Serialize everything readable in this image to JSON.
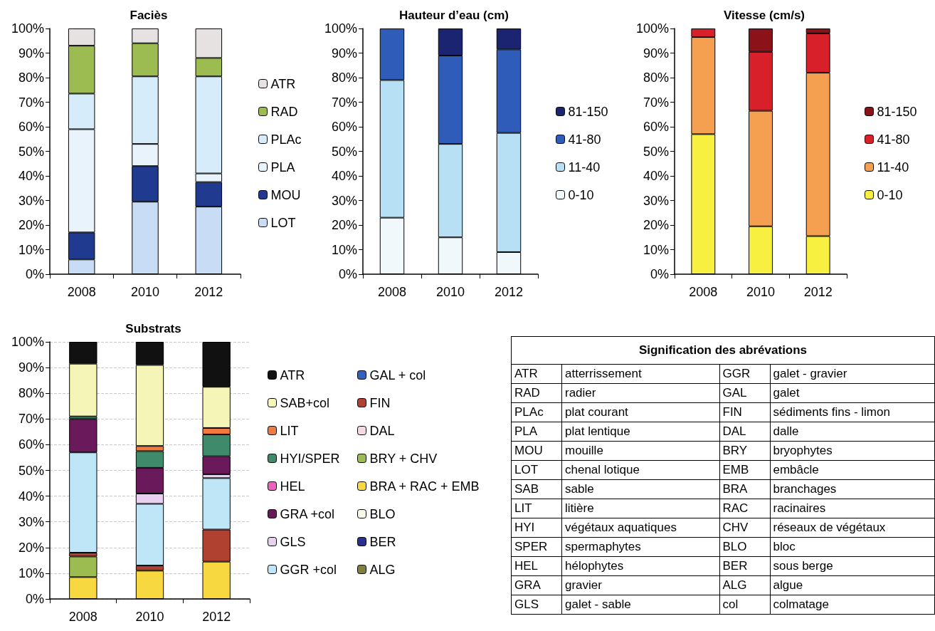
{
  "chart_data": [
    {
      "type": "bar",
      "stacked": true,
      "title": "Faciès",
      "categories": [
        "2008",
        "2010",
        "2012"
      ],
      "legend": "right",
      "ylim": [
        0,
        100
      ],
      "yticks": [
        {
          "value": 0,
          "label": "0%"
        },
        {
          "value": 10,
          "label": "10%"
        },
        {
          "value": 20,
          "label": "20%"
        },
        {
          "value": 30,
          "label": "30%"
        },
        {
          "value": 40,
          "label": "40%"
        },
        {
          "value": 50,
          "label": "50%"
        },
        {
          "value": 60,
          "label": "60%"
        },
        {
          "value": 70,
          "label": "70%"
        },
        {
          "value": 80,
          "label": "80%"
        },
        {
          "value": 90,
          "label": "90%"
        },
        {
          "value": 100,
          "label": "100%"
        }
      ],
      "series": [
        {
          "name": "LOT",
          "color": "#c9dcf5",
          "values": [
            6,
            29.5,
            27.5
          ]
        },
        {
          "name": "MOU",
          "color": "#1f3a8f",
          "values": [
            11,
            14.5,
            10
          ]
        },
        {
          "name": "PLA",
          "color": "#e8f3fb",
          "values": [
            42,
            9,
            3.5
          ]
        },
        {
          "name": "PLAc",
          "color": "#d7ecfa",
          "values": [
            14.5,
            27.5,
            39.5
          ]
        },
        {
          "name": "RAD",
          "color": "#9cbb50",
          "values": [
            19.5,
            13.5,
            7.5
          ]
        },
        {
          "name": "ATR",
          "color": "#e6e2e2",
          "values": [
            7,
            6,
            12
          ]
        }
      ]
    },
    {
      "type": "bar",
      "stacked": true,
      "title": "Hauteur d’eau (cm)",
      "categories": [
        "2008",
        "2010",
        "2012"
      ],
      "legend": "right",
      "ylim": [
        0,
        100
      ],
      "yticks": [
        {
          "value": 0,
          "label": "0%"
        },
        {
          "value": 10,
          "label": "10%"
        },
        {
          "value": 20,
          "label": "20%"
        },
        {
          "value": 30,
          "label": "30%"
        },
        {
          "value": 40,
          "label": "40%"
        },
        {
          "value": 50,
          "label": "50%"
        },
        {
          "value": 60,
          "label": "60%"
        },
        {
          "value": 70,
          "label": "70%"
        },
        {
          "value": 80,
          "label": "80%"
        },
        {
          "value": 90,
          "label": "90%"
        },
        {
          "value": 100,
          "label": "100%"
        }
      ],
      "series": [
        {
          "name": "0-10",
          "color": "#f0f8fc",
          "values": [
            23,
            15,
            9
          ]
        },
        {
          "name": "11-40",
          "color": "#b8e0f5",
          "values": [
            56,
            38,
            48.5
          ]
        },
        {
          "name": "41-80",
          "color": "#2e5cb8",
          "values": [
            21,
            36,
            34
          ]
        },
        {
          "name": "81-150",
          "color": "#1a2470",
          "values": [
            0,
            11,
            8.5
          ]
        }
      ]
    },
    {
      "type": "bar",
      "stacked": true,
      "title": "Vitesse (cm/s)",
      "categories": [
        "2008",
        "2010",
        "2012"
      ],
      "legend": "right",
      "ylim": [
        0,
        100
      ],
      "yticks": [
        {
          "value": 0,
          "label": "0%"
        },
        {
          "value": 10,
          "label": "10%"
        },
        {
          "value": 20,
          "label": "20%"
        },
        {
          "value": 30,
          "label": "30%"
        },
        {
          "value": 40,
          "label": "40%"
        },
        {
          "value": 50,
          "label": "50%"
        },
        {
          "value": 60,
          "label": "60%"
        },
        {
          "value": 70,
          "label": "70%"
        },
        {
          "value": 80,
          "label": "80%"
        },
        {
          "value": 90,
          "label": "90%"
        },
        {
          "value": 100,
          "label": "100%"
        }
      ],
      "series": [
        {
          "name": "0-10",
          "color": "#f8f040",
          "values": [
            57,
            19.5,
            15.5
          ]
        },
        {
          "name": "11-40",
          "color": "#f5a050",
          "values": [
            39.5,
            47,
            66.5
          ]
        },
        {
          "name": "41-80",
          "color": "#d8202a",
          "values": [
            3.5,
            24,
            16
          ]
        },
        {
          "name": "81-150",
          "color": "#8a1218",
          "values": [
            0,
            9.5,
            2
          ]
        }
      ]
    },
    {
      "type": "bar",
      "stacked": true,
      "title": "Substrats",
      "categories": [
        "2008",
        "2010",
        "2012"
      ],
      "legend": "right",
      "grid": "y",
      "ylim": [
        0,
        100
      ],
      "yticks": [
        {
          "value": 0,
          "label": "0%"
        },
        {
          "value": 10,
          "label": "10%"
        },
        {
          "value": 20,
          "label": "20%"
        },
        {
          "value": 30,
          "label": "30%"
        },
        {
          "value": 40,
          "label": "40%"
        },
        {
          "value": 50,
          "label": "50%"
        },
        {
          "value": 60,
          "label": "60%"
        },
        {
          "value": 70,
          "label": "70%"
        },
        {
          "value": 80,
          "label": "80%"
        },
        {
          "value": 90,
          "label": "90%"
        },
        {
          "value": 100,
          "label": "100%"
        }
      ],
      "series": [
        {
          "name": "ALG",
          "color": "#808040",
          "values": [
            0,
            0,
            0
          ]
        },
        {
          "name": "BER",
          "color": "#283090",
          "values": [
            0,
            0,
            0
          ]
        },
        {
          "name": "BLO",
          "color": "#f8f8e8",
          "values": [
            0,
            0,
            0
          ]
        },
        {
          "name": "BRA + RAC + EMB",
          "color": "#f8d840",
          "values": [
            8.5,
            11,
            14.5
          ]
        },
        {
          "name": "BRY + CHV",
          "color": "#9cbb50",
          "values": [
            8,
            0,
            0
          ]
        },
        {
          "name": "DAL",
          "color": "#f8d8e0",
          "values": [
            0,
            0,
            0
          ]
        },
        {
          "name": "FIN",
          "color": "#b04030",
          "values": [
            1.5,
            2,
            12.5
          ]
        },
        {
          "name": "GAL + col",
          "color": "#3060c0",
          "values": [
            0,
            0,
            0
          ]
        },
        {
          "name": "GGR +col",
          "color": "#bfe6f7",
          "values": [
            39,
            24,
            20
          ]
        },
        {
          "name": "GLS",
          "color": "#e8d0f0",
          "values": [
            0,
            4,
            1.5
          ]
        },
        {
          "name": "GRA +col",
          "color": "#6a1a5a",
          "values": [
            13,
            10,
            7
          ]
        },
        {
          "name": "HEL",
          "color": "#f060c0",
          "values": [
            0,
            0,
            0
          ]
        },
        {
          "name": "HYI/SPER",
          "color": "#3f8a6a",
          "values": [
            1,
            6.5,
            8.5
          ]
        },
        {
          "name": "LIT",
          "color": "#f07a40",
          "values": [
            0,
            2,
            2.5
          ]
        },
        {
          "name": "SAB+col",
          "color": "#f5f5b8",
          "values": [
            20.5,
            31.5,
            16
          ]
        },
        {
          "name": "ATR",
          "color": "#111111",
          "values": [
            8.5,
            9,
            17.5
          ]
        }
      ]
    },
    {
      "type": "other",
      "title": "Signification des abrévations",
      "annotations": [
        "ATR",
        "atterrissement",
        "GGR",
        "galet - gravier",
        "RAD",
        "radier",
        "GAL",
        "galet",
        "PLAc",
        "plat courant",
        "FIN",
        "sédiments fins - limon",
        "PLA",
        "plat lentique",
        "DAL",
        "dalle",
        "MOU",
        "mouille",
        "BRY",
        "bryophytes",
        "LOT",
        "chenal lotique",
        "EMB",
        "embâcle",
        "SAB",
        "sable",
        "BRA",
        "branchages",
        "LIT",
        "litière",
        "RAC",
        "racinaires",
        "HYI",
        "végétaux aquatiques",
        "CHV",
        "réseaux de  végétaux",
        "SPER",
        "spermaphytes",
        "BLO",
        "bloc",
        "HEL",
        "hélophytes",
        "BER",
        "sous berge",
        "GRA",
        "gravier",
        "ALG",
        "algue",
        "GLS",
        "galet - sable",
        "col",
        "colmatage"
      ]
    }
  ]
}
